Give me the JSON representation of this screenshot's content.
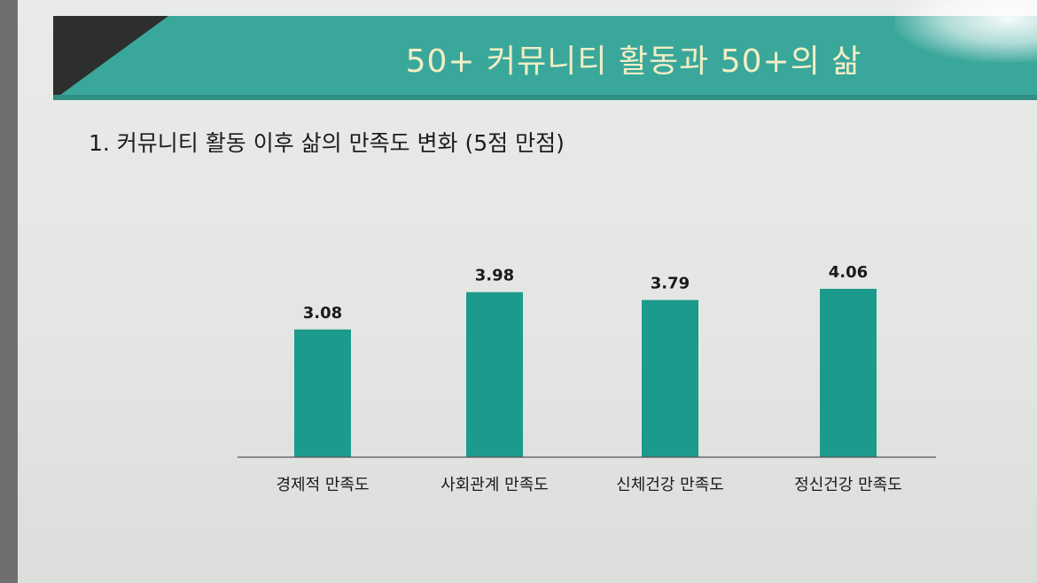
{
  "slide": {
    "title": "50+ 커뮤니티 활동과 50+의 삶"
  },
  "section": {
    "title": "1.  커뮤니티 활동 이후 삶의 만족도 변화 (5점 만점)"
  },
  "colors": {
    "header": "#3aa79b",
    "bar": "#1c9a8b",
    "title_text": "#f1eec4"
  },
  "chart_data": {
    "type": "bar",
    "categories": [
      "경제적 만족도",
      "사회관계 만족도",
      "신체건강 만족도",
      "정신건강 만족도"
    ],
    "values": [
      3.08,
      3.98,
      3.79,
      4.06
    ],
    "data_labels": [
      "3.08",
      "3.98",
      "3.79",
      "4.06"
    ],
    "ylim": [
      0,
      5
    ],
    "grid": false,
    "legend": "none"
  }
}
